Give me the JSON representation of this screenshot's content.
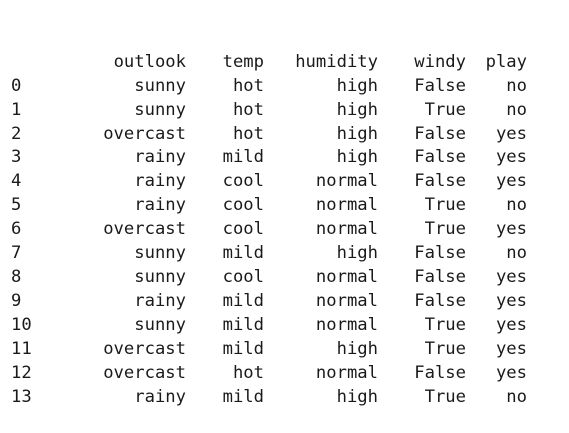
{
  "dataframe": {
    "columns": [
      "outlook",
      "temp",
      "humidity",
      "windy",
      "play"
    ],
    "rows": [
      {
        "index": "0",
        "cells": [
          "sunny",
          "hot",
          "high",
          "False",
          "no"
        ]
      },
      {
        "index": "1",
        "cells": [
          "sunny",
          "hot",
          "high",
          "True",
          "no"
        ]
      },
      {
        "index": "2",
        "cells": [
          "overcast",
          "hot",
          "high",
          "False",
          "yes"
        ]
      },
      {
        "index": "3",
        "cells": [
          "rainy",
          "mild",
          "high",
          "False",
          "yes"
        ]
      },
      {
        "index": "4",
        "cells": [
          "rainy",
          "cool",
          "normal",
          "False",
          "yes"
        ]
      },
      {
        "index": "5",
        "cells": [
          "rainy",
          "cool",
          "normal",
          "True",
          "no"
        ]
      },
      {
        "index": "6",
        "cells": [
          "overcast",
          "cool",
          "normal",
          "True",
          "yes"
        ]
      },
      {
        "index": "7",
        "cells": [
          "sunny",
          "mild",
          "high",
          "False",
          "no"
        ]
      },
      {
        "index": "8",
        "cells": [
          "sunny",
          "cool",
          "normal",
          "False",
          "yes"
        ]
      },
      {
        "index": "9",
        "cells": [
          "rainy",
          "mild",
          "normal",
          "False",
          "yes"
        ]
      },
      {
        "index": "10",
        "cells": [
          "sunny",
          "mild",
          "normal",
          "True",
          "yes"
        ]
      },
      {
        "index": "11",
        "cells": [
          "overcast",
          "mild",
          "high",
          "True",
          "yes"
        ]
      },
      {
        "index": "12",
        "cells": [
          "overcast",
          "hot",
          "normal",
          "False",
          "yes"
        ]
      },
      {
        "index": "13",
        "cells": [
          "rainy",
          "mild",
          "high",
          "True",
          "no"
        ]
      }
    ]
  }
}
